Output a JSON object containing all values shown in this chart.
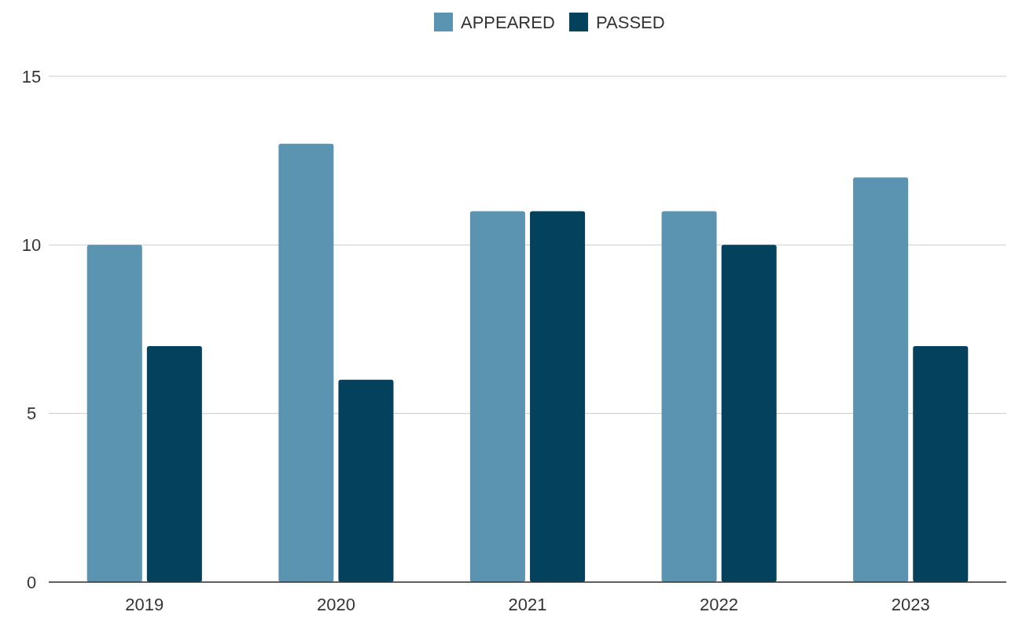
{
  "chart_data": {
    "type": "bar",
    "categories": [
      "2019",
      "2020",
      "2021",
      "2022",
      "2023"
    ],
    "series": [
      {
        "name": "APPEARED",
        "color": "#5b94b1",
        "values": [
          10,
          13,
          11,
          11,
          12
        ]
      },
      {
        "name": "PASSED",
        "color": "#04415d",
        "values": [
          7,
          6,
          11,
          10,
          7
        ]
      }
    ],
    "ylim": [
      0,
      15
    ],
    "yticks": [
      0,
      5,
      10,
      15
    ],
    "grid": "y",
    "legend": "top"
  }
}
